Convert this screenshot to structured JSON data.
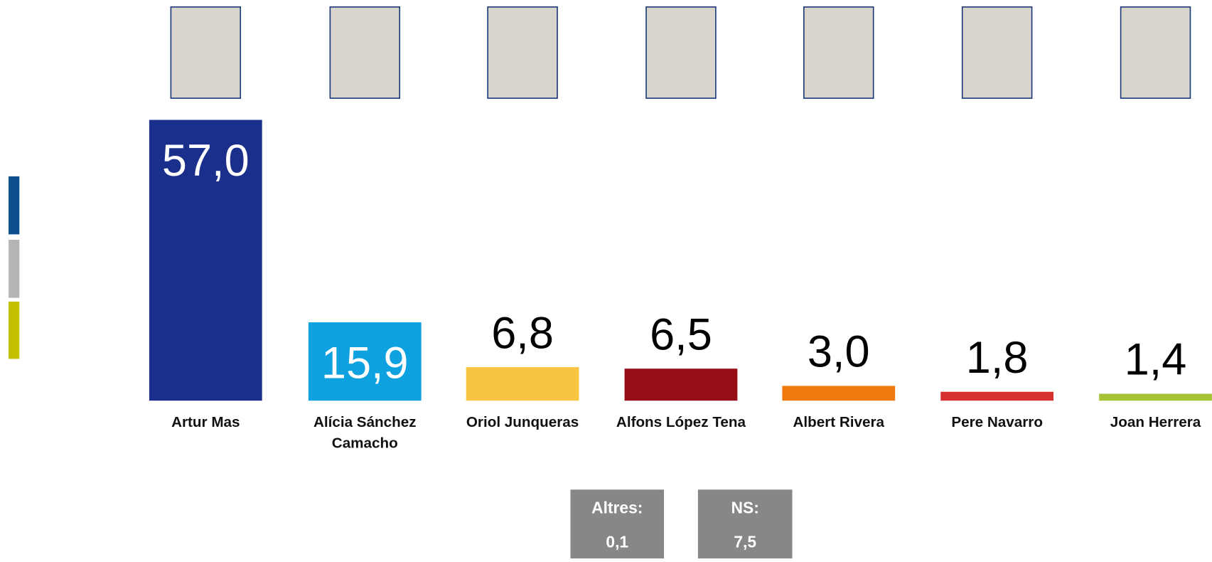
{
  "chart_data": {
    "type": "bar",
    "categories": [
      "Artur Mas",
      "Alícia Sánchez Camacho",
      "Oriol Junqueras",
      "Alfons López Tena",
      "Albert Rivera",
      "Pere Navarro",
      "Joan Herrera"
    ],
    "values": [
      57.0,
      15.9,
      6.8,
      6.5,
      3.0,
      1.8,
      1.4
    ],
    "value_labels": [
      "57,0",
      "15,9",
      "6,8",
      "6,5",
      "3,0",
      "1,8",
      "1,4"
    ],
    "colors": [
      "#1a2f8c",
      "#0ea1e0",
      "#f9c440",
      "#960d15",
      "#f07a0c",
      "#d8302e",
      "#a5c234"
    ],
    "annotations": [
      {
        "label": "Altres:",
        "value": "0,1"
      },
      {
        "label": "NS:",
        "value": "7,5"
      }
    ]
  }
}
